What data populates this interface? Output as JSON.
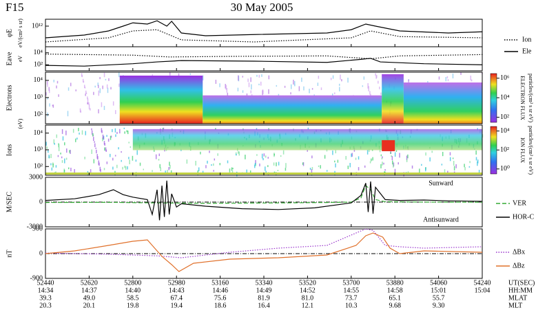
{
  "header": {
    "satellite": "F15",
    "date": "30 May 2005"
  },
  "chart_data": [
    {
      "type": "line",
      "ylabel": "φE",
      "ylabel_units": "eV/(cm² s sr)",
      "log": true,
      "ylim": [
        1000000000.0,
        10000000000000.0
      ],
      "yticks": [
        {
          "value": 1000000000000.0,
          "label": "10¹²"
        }
      ],
      "series": [
        {
          "name": "Ion",
          "color": "#000000",
          "style": "dotted",
          "x": [
            52440,
            52700,
            52800,
            52900,
            53000,
            53300,
            53700,
            53780,
            53900,
            54240
          ],
          "values": [
            5000000000.0,
            20000000000.0,
            200000000000.0,
            300000000000.0,
            10000000000.0,
            5000000000.0,
            20000000000.0,
            200000000000.0,
            30000000000.0,
            20000000000.0
          ]
        },
        {
          "name": "Ele",
          "color": "#000000",
          "style": "solid",
          "x": [
            52440,
            52600,
            52700,
            52760,
            52800,
            52860,
            52900,
            52940,
            52960,
            53000,
            53100,
            53300,
            53600,
            53700,
            53760,
            53800,
            53900,
            54100,
            54240
          ],
          "values": [
            20000000000.0,
            50000000000.0,
            200000000000.0,
            1000000000000.0,
            3000000000000.0,
            2000000000000.0,
            6000000000000.0,
            1000000000000.0,
            5000000000000.0,
            100000000000.0,
            40000000000.0,
            60000000000.0,
            100000000000.0,
            300000000000.0,
            2000000000000.0,
            1000000000000.0,
            200000000000.0,
            100000000000.0,
            150000000000.0
          ]
        }
      ]
    },
    {
      "type": "line",
      "ylabel": "Eave",
      "ylabel_units": "eV",
      "log": true,
      "ylim": [
        10,
        100000
      ],
      "yticks": [
        {
          "value": 10000,
          "label": "10⁴"
        },
        {
          "value": 100,
          "label": "10²"
        }
      ],
      "series": [
        {
          "color": "#000000",
          "style": "dotted",
          "x": [
            52440,
            52800,
            52950,
            53200,
            53600,
            53780,
            53900,
            54240
          ],
          "values": [
            6000,
            4000,
            2000,
            2500,
            3000,
            1000,
            3000,
            5000
          ]
        },
        {
          "color": "#000000",
          "style": "solid",
          "x": [
            52440,
            52600,
            52800,
            52900,
            53000,
            53300,
            53600,
            53740,
            53780,
            53820,
            54000,
            54240
          ],
          "values": [
            80,
            60,
            150,
            300,
            500,
            400,
            250,
            800,
            1200,
            300,
            150,
            100
          ]
        }
      ]
    },
    {
      "type": "spectrogram",
      "ylabel": "Electrons",
      "ylabel_units": "(eV)",
      "log": true,
      "ylim": [
        30,
        30000
      ],
      "yticks": [
        {
          "value": 10000,
          "label": "10⁴"
        },
        {
          "value": 1000,
          "label": "10³"
        },
        {
          "value": 100,
          "label": "10²"
        }
      ],
      "colorbar": {
        "title": "ELECTRON FLUX",
        "units": "particles/(cm² s sr eV)",
        "lim": [
          30,
          3000000
        ],
        "ticks": [
          {
            "value": 1000000,
            "label": "10⁶"
          },
          {
            "value": 10000,
            "label": "10⁴"
          },
          {
            "value": 100,
            "label": "10²"
          }
        ]
      }
    },
    {
      "type": "spectrogram",
      "ylabel": "Ions",
      "log": true,
      "ylim": [
        30,
        30000
      ],
      "yticks": [
        {
          "value": 10000,
          "label": "10⁴"
        },
        {
          "value": 1000,
          "label": "10³"
        },
        {
          "value": 100,
          "label": "10²"
        }
      ],
      "colorbar": {
        "title": "ION FLUX",
        "units": "particles/(cm² s sr eV)",
        "lim": [
          0.3,
          30000
        ],
        "ticks": [
          {
            "value": 10000,
            "label": "10⁴"
          },
          {
            "value": 100,
            "label": "10²"
          },
          {
            "value": 1,
            "label": "10⁰"
          }
        ]
      }
    },
    {
      "type": "line",
      "ylabel": "M/SEC",
      "ylim": [
        -3000,
        3000
      ],
      "yticks": [
        3000,
        0,
        -3000
      ],
      "annotations": [
        "Sunward",
        "Antisunward"
      ],
      "zero_line": true,
      "series": [
        {
          "name": "VER",
          "color": "#33aa33",
          "style": "dashed",
          "x": [
            52440,
            52700,
            52900,
            53100,
            53400,
            53600,
            53700,
            53740,
            53760,
            53780,
            53800,
            53840,
            54000,
            54240
          ],
          "values": [
            -50,
            -30,
            -100,
            -150,
            -100,
            -50,
            0,
            500,
            2000,
            1500,
            300,
            50,
            0,
            -20
          ]
        },
        {
          "name": "HOR-C",
          "color": "#000000",
          "style": "solid",
          "x": [
            52440,
            52560,
            52660,
            52720,
            52760,
            52800,
            52860,
            52880,
            52900,
            52910,
            52920,
            52930,
            52940,
            52950,
            52960,
            52980,
            53000,
            53100,
            53250,
            53400,
            53550,
            53700,
            53740,
            53760,
            53770,
            53780,
            53790,
            53800,
            53840,
            53900,
            54000,
            54100,
            54240
          ],
          "values": [
            200,
            400,
            900,
            1500,
            900,
            600,
            300,
            -1500,
            1500,
            -2200,
            2000,
            -1800,
            2600,
            -1500,
            1000,
            -600,
            -200,
            -500,
            -800,
            -900,
            -700,
            -100,
            800,
            2300,
            -1200,
            2500,
            -1400,
            1800,
            300,
            200,
            250,
            150,
            100
          ]
        }
      ]
    },
    {
      "type": "line",
      "ylabel": "nT",
      "ylim": [
        -900,
        900
      ],
      "yticks": [
        900,
        0,
        -900
      ],
      "zero_line": true,
      "series": [
        {
          "name": "ΔBx",
          "color": "#9933cc",
          "style": "dotted",
          "x": [
            52440,
            52700,
            52900,
            53000,
            53200,
            53400,
            53600,
            53760,
            53790,
            53840,
            53900,
            54000,
            54240
          ],
          "values": [
            20,
            -20,
            -80,
            -150,
            50,
            200,
            300,
            900,
            850,
            300,
            250,
            200,
            250
          ]
        },
        {
          "name": "ΔBz",
          "color": "#e0702a",
          "style": "solid",
          "x": [
            52440,
            52560,
            52700,
            52800,
            52860,
            52880,
            52920,
            52960,
            52990,
            53050,
            53200,
            53400,
            53600,
            53720,
            53760,
            53790,
            53830,
            53860,
            53900,
            54000,
            54240
          ],
          "values": [
            0,
            100,
            300,
            450,
            500,
            300,
            -100,
            -400,
            -650,
            -350,
            -200,
            -150,
            -50,
            300,
            650,
            750,
            600,
            200,
            0,
            100,
            50
          ]
        }
      ]
    }
  ],
  "x_axis": {
    "xlim": [
      52440,
      54240
    ],
    "xticks": [
      52440,
      52620,
      52800,
      52980,
      53160,
      53340,
      53520,
      53700,
      53880,
      54060,
      54240
    ],
    "row_labels": [
      "UT(SEC)",
      "HH:MM",
      "MLAT",
      "MLT"
    ],
    "hhmm": [
      "14:34",
      "14:37",
      "14:40",
      "14:43",
      "14:46",
      "14:49",
      "14:52",
      "14:55",
      "14:58",
      "15:01",
      "15:04"
    ],
    "mlat": [
      "39.3",
      "49.0",
      "58.5",
      "67.4",
      "75.6",
      "81.9",
      "81.0",
      "73.7",
      "65.1",
      "55.7",
      null
    ],
    "mlt": [
      "20.3",
      "20.1",
      "19.8",
      "19.4",
      "18.6",
      "16.4",
      "12.1",
      "10.3",
      "9.68",
      "9.30",
      null
    ]
  }
}
